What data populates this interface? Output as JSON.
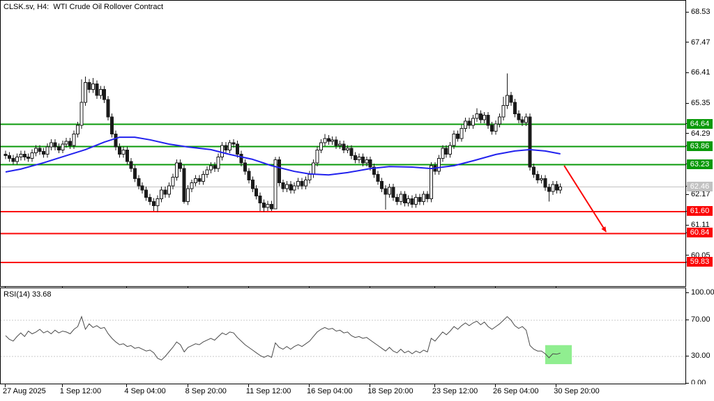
{
  "window": {
    "title": "CLSK.sv, H4:  WTI Crude Oil Rollover Contract"
  },
  "rsi_label": "RSI(14) 33.68",
  "colors": {
    "background": "#ffffff",
    "border": "#000000",
    "bullish_body": "#ffffff",
    "bearish_body": "#1a1a1a",
    "candle_outline": "#1a1a1a",
    "ma_line": "#2222ee",
    "resistance_green": "#0a9a0a",
    "support_red": "#fb0505",
    "current_price_gray": "#c2c2c2",
    "rsi_line": "#4a4a4a",
    "rsi_dotted": "#c8c8c8",
    "rsi_highlight": "#90ee90",
    "arrow_red": "#fb0505",
    "axis_text": "#000000"
  },
  "chart_data": {
    "type": "candlestick",
    "symbol": "CLSK.sv",
    "timeframe": "H4",
    "description": "WTI Crude Oil Rollover Contract",
    "x_labels": [
      {
        "label": "27 Aug 2025",
        "bar": 0
      },
      {
        "label": "1 Sep 12:00",
        "bar": 15
      },
      {
        "label": "4 Sep 04:00",
        "bar": 32
      },
      {
        "label": "8 Sep 20:00",
        "bar": 48
      },
      {
        "label": "11 Sep 12:00",
        "bar": 64
      },
      {
        "label": "16 Sep 04:00",
        "bar": 80
      },
      {
        "label": "18 Sep 20:00",
        "bar": 96
      },
      {
        "label": "23 Sep 12:00",
        "bar": 113
      },
      {
        "label": "26 Sep 04:00",
        "bar": 129
      },
      {
        "label": "30 Sep 20:00",
        "bar": 145
      }
    ],
    "price_ticks": [
      "68.53",
      "67.47",
      "66.41",
      "65.35",
      "64.29",
      "62.17",
      "61.11",
      "60.05"
    ],
    "levels": [
      {
        "value": 64.64,
        "type": "resistance",
        "color_key": "resistance_green",
        "line_width": 2
      },
      {
        "value": 63.86,
        "type": "resistance",
        "color_key": "resistance_green",
        "line_width": 2
      },
      {
        "value": 63.23,
        "type": "resistance",
        "color_key": "resistance_green",
        "line_width": 2
      },
      {
        "value": 62.46,
        "type": "current_price",
        "color_key": "current_price_gray",
        "line_width": 1
      },
      {
        "value": 61.6,
        "type": "support",
        "color_key": "support_red",
        "line_width": 2
      },
      {
        "value": 60.84,
        "type": "support",
        "color_key": "support_red",
        "line_width": 2
      },
      {
        "value": 59.83,
        "type": "support",
        "color_key": "support_red",
        "line_width": 2
      }
    ],
    "candles": {
      "first_open": 63.6,
      "default_wick": 0.12,
      "closes": [
        63.55,
        63.45,
        63.35,
        63.5,
        63.6,
        63.5,
        63.45,
        63.65,
        63.8,
        63.7,
        63.6,
        63.85,
        64.0,
        63.85,
        63.75,
        63.95,
        64.05,
        63.9,
        64.3,
        64.6,
        65.4,
        66.1,
        65.85,
        66.05,
        65.65,
        65.85,
        65.5,
        64.9,
        64.3,
        63.85,
        63.6,
        63.75,
        63.35,
        63.1,
        62.75,
        62.5,
        62.35,
        62.1,
        61.95,
        61.8,
        62.05,
        62.35,
        62.2,
        62.5,
        62.8,
        63.3,
        63.1,
        61.95,
        62.4,
        62.6,
        62.75,
        62.65,
        62.9,
        63.05,
        63.2,
        63.1,
        63.5,
        63.9,
        63.75,
        64.0,
        63.95,
        63.6,
        63.3,
        63.0,
        62.7,
        62.4,
        62.15,
        61.9,
        61.75,
        61.85,
        61.7,
        63.4,
        62.6,
        62.4,
        62.55,
        62.35,
        62.5,
        62.65,
        62.5,
        62.7,
        62.9,
        63.3,
        63.75,
        64.0,
        64.15,
        64.05,
        64.1,
        63.9,
        63.95,
        63.75,
        63.8,
        63.55,
        63.4,
        63.5,
        63.3,
        63.4,
        63.15,
        62.9,
        62.65,
        62.4,
        62.2,
        62.45,
        62.1,
        61.95,
        62.2,
        61.9,
        62.05,
        61.85,
        62.1,
        61.95,
        62.2,
        62.05,
        63.2,
        63.0,
        63.45,
        63.8,
        63.6,
        63.9,
        64.3,
        64.15,
        64.5,
        64.75,
        64.6,
        64.85,
        65.0,
        64.8,
        64.95,
        64.6,
        64.4,
        64.65,
        64.9,
        65.3,
        65.65,
        65.4,
        65.0,
        64.8,
        64.7,
        64.9,
        63.15,
        62.9,
        62.7,
        62.75,
        62.45,
        62.3,
        62.55,
        62.35,
        62.46
      ],
      "high_overrides": {
        "20": 66.2,
        "21": 66.3,
        "23": 66.25,
        "59": 64.1,
        "71": 63.5,
        "84": 64.3,
        "124": 65.2,
        "131": 65.6,
        "132": 66.41
      },
      "low_overrides": {
        "39": 61.62,
        "40": 61.6,
        "47": 61.88,
        "67": 61.62,
        "68": 61.6,
        "70": 61.62,
        "71": 61.7,
        "100": 61.67,
        "143": 61.95
      }
    },
    "ma_points": [
      [
        0,
        62.98
      ],
      [
        4,
        63.08
      ],
      [
        10,
        63.3
      ],
      [
        15,
        63.51
      ],
      [
        21,
        63.76
      ],
      [
        26,
        64.02
      ],
      [
        30,
        64.19
      ],
      [
        34,
        64.19
      ],
      [
        38,
        64.1
      ],
      [
        43,
        63.95
      ],
      [
        48,
        63.85
      ],
      [
        54,
        63.76
      ],
      [
        59,
        63.59
      ],
      [
        65,
        63.42
      ],
      [
        70,
        63.2
      ],
      [
        76,
        63.0
      ],
      [
        80,
        62.91
      ],
      [
        85,
        62.88
      ],
      [
        90,
        62.96
      ],
      [
        96,
        63.1
      ],
      [
        101,
        63.17
      ],
      [
        107,
        63.15
      ],
      [
        112,
        63.1
      ],
      [
        118,
        63.2
      ],
      [
        123,
        63.37
      ],
      [
        129,
        63.59
      ],
      [
        134,
        63.71
      ],
      [
        138,
        63.76
      ],
      [
        142,
        63.71
      ],
      [
        146,
        63.61
      ]
    ],
    "rsi": {
      "period": 14,
      "current": 33.68,
      "guide_levels": [
        70,
        30
      ],
      "axis_ticks": [
        {
          "label": "100.00",
          "value": 100
        },
        {
          "label": "70.00",
          "value": 70
        },
        {
          "label": "30.00",
          "value": 30
        },
        {
          "label": "0.00",
          "value": 0
        }
      ],
      "values": [
        53,
        49,
        47,
        52,
        56,
        52,
        58,
        55,
        57,
        60,
        56,
        58,
        55,
        59,
        56,
        58,
        57,
        55,
        60,
        63,
        74,
        60,
        66,
        62,
        64,
        61,
        62,
        55,
        50,
        46,
        43,
        44,
        41,
        42,
        39,
        40,
        38,
        36,
        37,
        34,
        28,
        26,
        30,
        35,
        40,
        46,
        43,
        35,
        40,
        42,
        44,
        43,
        46,
        48,
        50,
        48,
        52,
        56,
        54,
        57,
        56,
        51,
        47,
        43,
        40,
        37,
        34,
        31,
        29,
        31,
        29,
        45,
        40,
        38,
        41,
        38,
        41,
        43,
        41,
        44,
        47,
        52,
        57,
        60,
        62,
        60,
        61,
        58,
        59,
        56,
        57,
        53,
        51,
        52,
        50,
        51,
        48,
        45,
        42,
        39,
        36,
        40,
        36,
        34,
        38,
        34,
        36,
        33,
        36,
        34,
        37,
        35,
        50,
        47,
        52,
        57,
        54,
        58,
        63,
        60,
        64,
        67,
        64,
        67,
        69,
        65,
        68,
        63,
        60,
        63,
        66,
        70,
        74,
        70,
        64,
        61,
        63,
        59,
        42,
        38,
        36,
        36,
        33,
        28.5,
        33,
        32.5,
        33.68
      ]
    },
    "annotations": {
      "trend_arrow": {
        "from_bar": 147,
        "from_price": 63.2,
        "to_bar": 158,
        "to_price": 60.9
      },
      "rsi_highlight_box": {
        "from_bar": 142,
        "to_bar": 149,
        "rsi_min": 21.5,
        "rsi_max": 42.5
      }
    }
  }
}
